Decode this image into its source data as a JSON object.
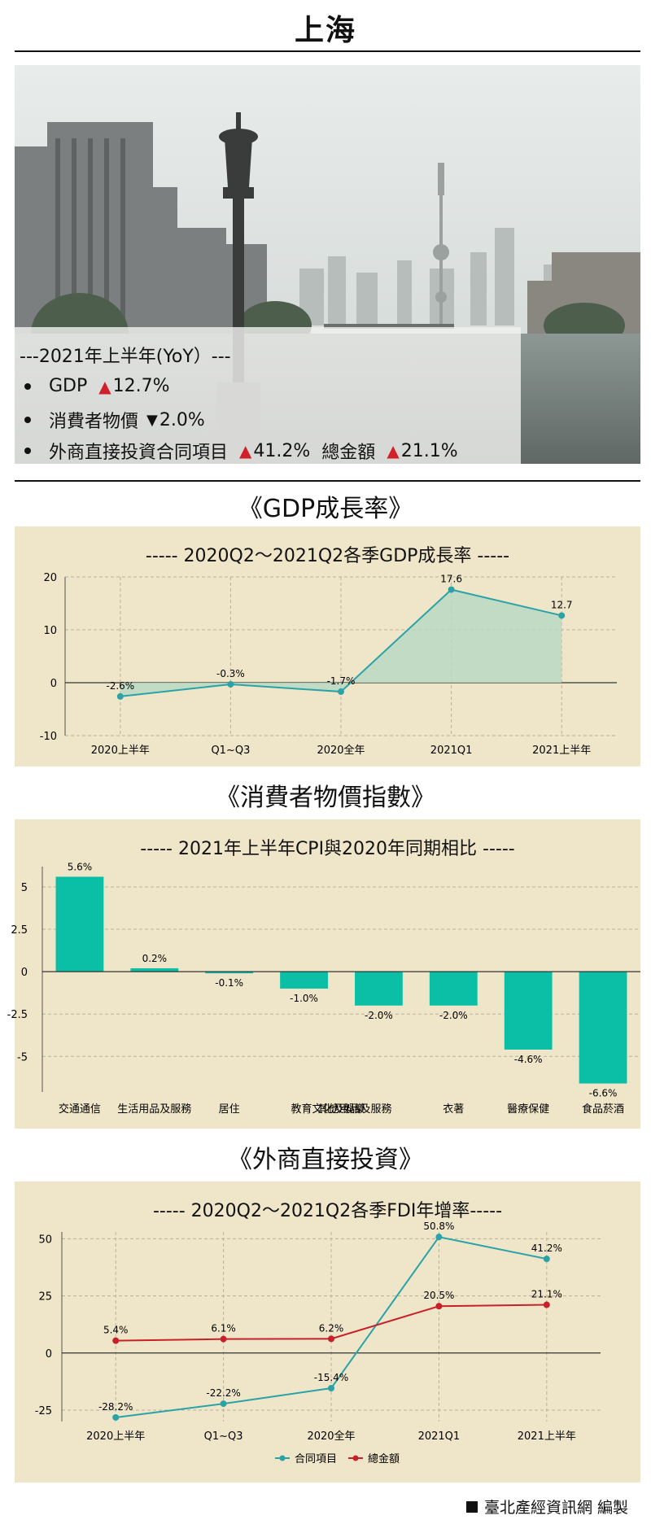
{
  "page": {
    "city": "上海"
  },
  "summary": {
    "heading": "---2021年上半年(YoY）---",
    "items": [
      {
        "label": "GDP",
        "direction": "up",
        "value": "12.7%"
      },
      {
        "label": "消費者物價",
        "direction": "down",
        "value": "2.0%"
      },
      {
        "label": "外商直接投資合同項目",
        "direction": "up",
        "value": "41.2%",
        "extra_label": "總金額",
        "extra_direction": "up",
        "extra_value": "21.1%"
      }
    ],
    "colors": {
      "up": "#d0202a",
      "down": "#111111"
    }
  },
  "sections": {
    "gdp": "《GDP成長率》",
    "cpi": "《消費者物價指數》",
    "fdi": "《外商直接投資》"
  },
  "credit": "臺北產經資訊網 編製",
  "chart_data": [
    {
      "type": "area",
      "title": "----- 2020Q2～2021Q2各季GDP成長率 -----",
      "categories": [
        "2020上半年",
        "Q1~Q3",
        "2020全年",
        "2021Q1",
        "2021上半年"
      ],
      "series": [
        {
          "values": [
            -2.6,
            -0.3,
            -1.7,
            17.6,
            12.7
          ],
          "labels": [
            "-2.6%",
            "-0.3%",
            "-1.7%",
            "17.6",
            "12.7"
          ],
          "color": "#2aa3a8",
          "fill": "#b8d8c4"
        }
      ],
      "ylim": [
        -10,
        20
      ],
      "yticks": [
        -10,
        0,
        10,
        20
      ],
      "grid": true
    },
    {
      "type": "bar",
      "title": "----- 2021年上半年CPI與2020年同期相比 -----",
      "categories": [
        "交通通信",
        "生活用品及服務",
        "居住",
        "教育文化及娛樂",
        "其他用品及服務",
        "衣著",
        "醫療保健",
        "食品菸酒"
      ],
      "values": [
        5.6,
        0.2,
        -0.1,
        -1.0,
        -2.0,
        -2.0,
        -4.6,
        -6.6
      ],
      "labels": [
        "5.6%",
        "0.2%",
        "-0.1%",
        "-1.0%",
        "-2.0%",
        "-2.0%",
        "-4.6%",
        "-6.6%"
      ],
      "color": "#0bbfa6",
      "ylim": [
        -7.1,
        6.2
      ],
      "yticks": [
        -5,
        -2.5,
        0,
        2.5,
        5
      ],
      "ytick_labels": [
        "-5",
        "-2.5",
        "0",
        "2.5",
        "5"
      ],
      "grid": true
    },
    {
      "type": "line",
      "title": "----- 2020Q2～2021Q2各季FDI年增率-----",
      "categories": [
        "2020上半年",
        "Q1~Q3",
        "2020全年",
        "2021Q1",
        "2021上半年"
      ],
      "series": [
        {
          "name": "合同項目",
          "values": [
            -28.2,
            -22.2,
            -15.4,
            50.8,
            41.2
          ],
          "labels": [
            "-28.2%",
            "-22.2%",
            "-15.4%",
            "50.8%",
            "41.2%"
          ],
          "color": "#2aa3a8"
        },
        {
          "name": "總金額",
          "values": [
            5.4,
            6.1,
            6.2,
            20.5,
            21.1
          ],
          "labels": [
            "5.4%",
            "6.1%",
            "6.2%",
            "20.5%",
            "21.1%"
          ],
          "color": "#c8202a"
        }
      ],
      "ylim": [
        -30,
        53
      ],
      "yticks": [
        -25,
        0,
        25,
        50
      ],
      "legend": "bottom-center",
      "grid": true
    }
  ]
}
